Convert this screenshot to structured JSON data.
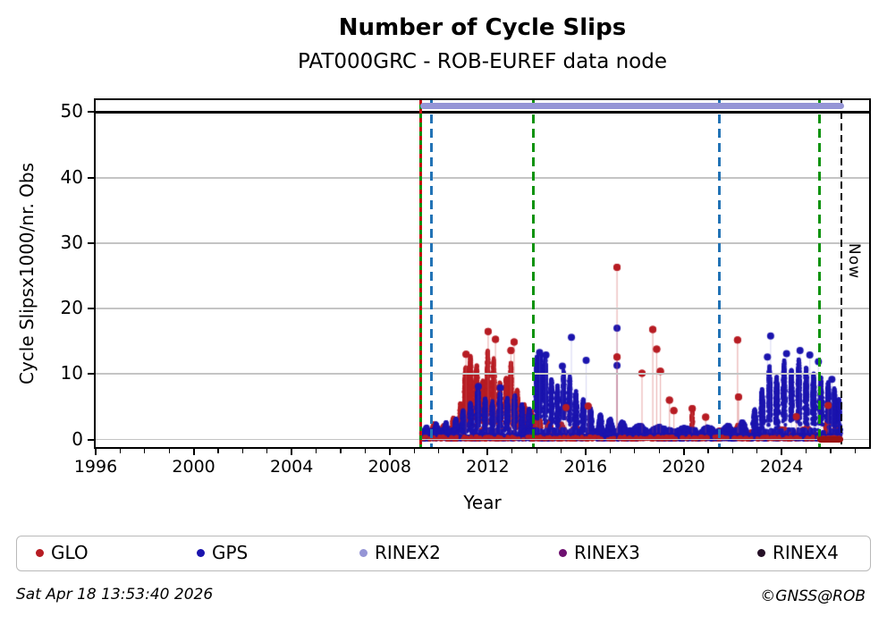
{
  "title": "Number of Cycle Slips",
  "subtitle": "PAT000GRC - ROB-EUREF data node",
  "footer": {
    "timestamp": "Sat Apr 18 13:53:40 2026",
    "credit": "©GNSS@ROB"
  },
  "legend": {
    "items": [
      {
        "label": "GLO",
        "color": "#b71c23"
      },
      {
        "label": "GPS",
        "color": "#1b14ae"
      },
      {
        "label": "RINEX2",
        "color": "#9595d6"
      },
      {
        "label": "RINEX3",
        "color": "#6e1070"
      },
      {
        "label": "RINEX4",
        "color": "#251026"
      }
    ]
  },
  "chart_data": {
    "type": "scatter",
    "title": "Number of Cycle Slips",
    "subtitle": "PAT000GRC - ROB-EUREF data node",
    "xlabel": "Year",
    "ylabel": "Cycle Slipsx1000/nr. Obs",
    "xlim": [
      1996,
      2027.57
    ],
    "ylim": [
      -1.16,
      51.84
    ],
    "x_major_ticks": [
      1996,
      2000,
      2004,
      2008,
      2012,
      2016,
      2020,
      2024
    ],
    "y_major_ticks": [
      0,
      10,
      20,
      30,
      40,
      50
    ],
    "y_gridlines": [
      0,
      10,
      20,
      30,
      40
    ],
    "reference_line_y": 50,
    "grid_color": "#c4c4c4",
    "now_marker": {
      "label": "Now",
      "year": 2026.44
    },
    "event_lines": [
      {
        "year": 2009.26,
        "style": "solid",
        "color": "#0d930d",
        "width": 3,
        "overlay": {
          "color": "#c41111",
          "dash": 5,
          "gap": 5
        }
      },
      {
        "year": 2009.72,
        "style": "dashed",
        "color": "#2273b6",
        "width": 3,
        "dash": 10,
        "gap": 6
      },
      {
        "year": 2013.88,
        "style": "dashed",
        "color": "#0d930d",
        "width": 3,
        "dash": 10,
        "gap": 6
      },
      {
        "year": 2021.47,
        "style": "dashed",
        "color": "#2273b6",
        "width": 3,
        "dash": 10,
        "gap": 6
      },
      {
        "year": 2025.53,
        "style": "dashed",
        "color": "#0d930d",
        "width": 3,
        "dash": 10,
        "gap": 6
      },
      {
        "year": 2026.44,
        "style": "dashed",
        "color": "#000000",
        "width": 2.5,
        "dash": 8,
        "gap": 5
      }
    ],
    "bars": [
      {
        "name": "rinex2-availability-bar",
        "y": 50.9,
        "x0": 2009.25,
        "x1": 2026.55,
        "color": "#9595d6"
      },
      {
        "name": "glo-outage-bar",
        "y": 0.0,
        "x0": 2025.46,
        "x1": 2026.52,
        "color": "#9c1313"
      }
    ],
    "series": [
      {
        "name": "GLO",
        "color": "#b71c23",
        "stem_color": "rgba(210,90,90,0.25)",
        "clip": [
          2009.28,
          2026.5
        ],
        "base": {
          "x0": 2009.3,
          "x1": 2026.42,
          "ymax": 0.7,
          "n": 900
        },
        "overdraw_strip": {
          "ymax": 0.45,
          "n": 420
        },
        "overdraw_outliers": true,
        "bumps": [
          [
            2009.45,
            1.6,
            0.1
          ],
          [
            2009.8,
            2.2,
            0.12
          ],
          [
            2010.2,
            2.0,
            0.12
          ],
          [
            2010.6,
            3.2,
            0.1
          ],
          [
            2010.9,
            5.5,
            0.08
          ],
          [
            2011.1,
            10.8,
            0.09
          ],
          [
            2011.3,
            12.6,
            0.08
          ],
          [
            2011.55,
            11.2,
            0.09
          ],
          [
            2011.8,
            8.8,
            0.08
          ],
          [
            2012.0,
            13.4,
            0.07
          ],
          [
            2012.25,
            12.2,
            0.07
          ],
          [
            2012.5,
            8.6,
            0.08
          ],
          [
            2012.75,
            9.4,
            0.07
          ],
          [
            2012.95,
            11.6,
            0.06
          ],
          [
            2013.2,
            7.6,
            0.08
          ],
          [
            2013.5,
            5.2,
            0.1
          ],
          [
            2013.8,
            4.2,
            0.1
          ],
          [
            2014.1,
            3.2,
            0.12
          ],
          [
            2014.5,
            2.6,
            0.15
          ],
          [
            2015.0,
            2.2,
            0.2
          ],
          [
            2015.6,
            1.8,
            0.25
          ],
          [
            2016.5,
            1.2,
            0.5
          ],
          [
            2018.0,
            1.0,
            0.8
          ],
          [
            2019.8,
            1.1,
            0.6
          ],
          [
            2020.35,
            4.4,
            0.04
          ],
          [
            2021.5,
            1.3,
            0.3
          ],
          [
            2022.2,
            2.0,
            0.1
          ],
          [
            2023.0,
            1.4,
            0.4
          ],
          [
            2024.0,
            1.5,
            0.5
          ],
          [
            2025.0,
            1.6,
            0.4
          ],
          [
            2025.85,
            2.6,
            0.12
          ],
          [
            2026.2,
            1.8,
            0.1
          ]
        ],
        "outliers": [
          [
            2011.12,
            13.0
          ],
          [
            2012.02,
            16.5
          ],
          [
            2012.32,
            15.3
          ],
          [
            2012.95,
            13.6
          ],
          [
            2013.08,
            14.9
          ],
          [
            2015.2,
            4.9
          ],
          [
            2016.1,
            5.1
          ],
          [
            2017.28,
            26.3
          ],
          [
            2017.28,
            12.6
          ],
          [
            2018.3,
            10.1
          ],
          [
            2018.74,
            16.8
          ],
          [
            2018.9,
            13.8
          ],
          [
            2019.05,
            10.4
          ],
          [
            2019.42,
            6.0
          ],
          [
            2019.6,
            4.4
          ],
          [
            2020.35,
            4.7
          ],
          [
            2020.9,
            3.4
          ],
          [
            2022.2,
            15.2
          ],
          [
            2022.24,
            6.5
          ],
          [
            2024.6,
            3.5
          ],
          [
            2025.9,
            5.2
          ]
        ]
      },
      {
        "name": "GPS",
        "color": "#1b14ae",
        "stem_color": "rgba(95,95,205,0.22)",
        "clip": [
          2009.28,
          2026.5
        ],
        "base": {
          "x0": 2009.3,
          "x1": 2026.42,
          "ymax": 1.6,
          "n": 1500
        },
        "bumps": [
          [
            2009.5,
            1.8,
            0.12
          ],
          [
            2009.9,
            2.2,
            0.12
          ],
          [
            2010.3,
            2.4,
            0.12
          ],
          [
            2010.7,
            3.0,
            0.1
          ],
          [
            2011.0,
            4.2,
            0.09
          ],
          [
            2011.3,
            5.4,
            0.09
          ],
          [
            2011.6,
            7.8,
            0.08
          ],
          [
            2011.9,
            6.2,
            0.08
          ],
          [
            2012.2,
            5.6,
            0.08
          ],
          [
            2012.5,
            7.0,
            0.08
          ],
          [
            2012.8,
            6.2,
            0.08
          ],
          [
            2013.1,
            6.6,
            0.08
          ],
          [
            2013.4,
            5.2,
            0.09
          ],
          [
            2013.7,
            4.6,
            0.09
          ],
          [
            2014.0,
            12.6,
            0.06
          ],
          [
            2014.15,
            13.2,
            0.05
          ],
          [
            2014.35,
            12.4,
            0.06
          ],
          [
            2014.6,
            9.2,
            0.07
          ],
          [
            2014.85,
            8.2,
            0.07
          ],
          [
            2015.1,
            10.4,
            0.06
          ],
          [
            2015.35,
            9.6,
            0.06
          ],
          [
            2015.6,
            7.2,
            0.08
          ],
          [
            2015.9,
            6.0,
            0.09
          ],
          [
            2016.2,
            4.6,
            0.1
          ],
          [
            2016.6,
            3.6,
            0.12
          ],
          [
            2017.0,
            3.0,
            0.15
          ],
          [
            2017.5,
            2.6,
            0.2
          ],
          [
            2018.2,
            2.0,
            0.4
          ],
          [
            2019.0,
            1.8,
            0.5
          ],
          [
            2020.0,
            1.7,
            0.5
          ],
          [
            2021.0,
            1.8,
            0.4
          ],
          [
            2021.8,
            2.0,
            0.3
          ],
          [
            2022.4,
            2.6,
            0.2
          ],
          [
            2022.9,
            4.5,
            0.1
          ],
          [
            2023.2,
            7.5,
            0.08
          ],
          [
            2023.5,
            11.0,
            0.07
          ],
          [
            2023.8,
            9.5,
            0.08
          ],
          [
            2024.1,
            12.0,
            0.07
          ],
          [
            2024.4,
            10.5,
            0.07
          ],
          [
            2024.7,
            12.2,
            0.07
          ],
          [
            2025.0,
            11.0,
            0.07
          ],
          [
            2025.3,
            10.0,
            0.08
          ],
          [
            2025.6,
            9.2,
            0.08
          ],
          [
            2025.9,
            8.6,
            0.08
          ],
          [
            2026.15,
            7.6,
            0.07
          ],
          [
            2026.35,
            6.4,
            0.05
          ]
        ],
        "outliers": [
          [
            2011.62,
            8.1
          ],
          [
            2012.52,
            7.9
          ],
          [
            2014.12,
            13.3
          ],
          [
            2014.38,
            12.9
          ],
          [
            2015.05,
            11.2
          ],
          [
            2015.42,
            15.6
          ],
          [
            2016.02,
            12.1
          ],
          [
            2017.28,
            17.0
          ],
          [
            2017.28,
            11.3
          ],
          [
            2023.42,
            12.6
          ],
          [
            2023.55,
            15.8
          ],
          [
            2024.2,
            13.1
          ],
          [
            2024.75,
            13.6
          ],
          [
            2025.15,
            12.9
          ],
          [
            2025.5,
            11.9
          ],
          [
            2026.05,
            9.2
          ]
        ]
      }
    ]
  }
}
